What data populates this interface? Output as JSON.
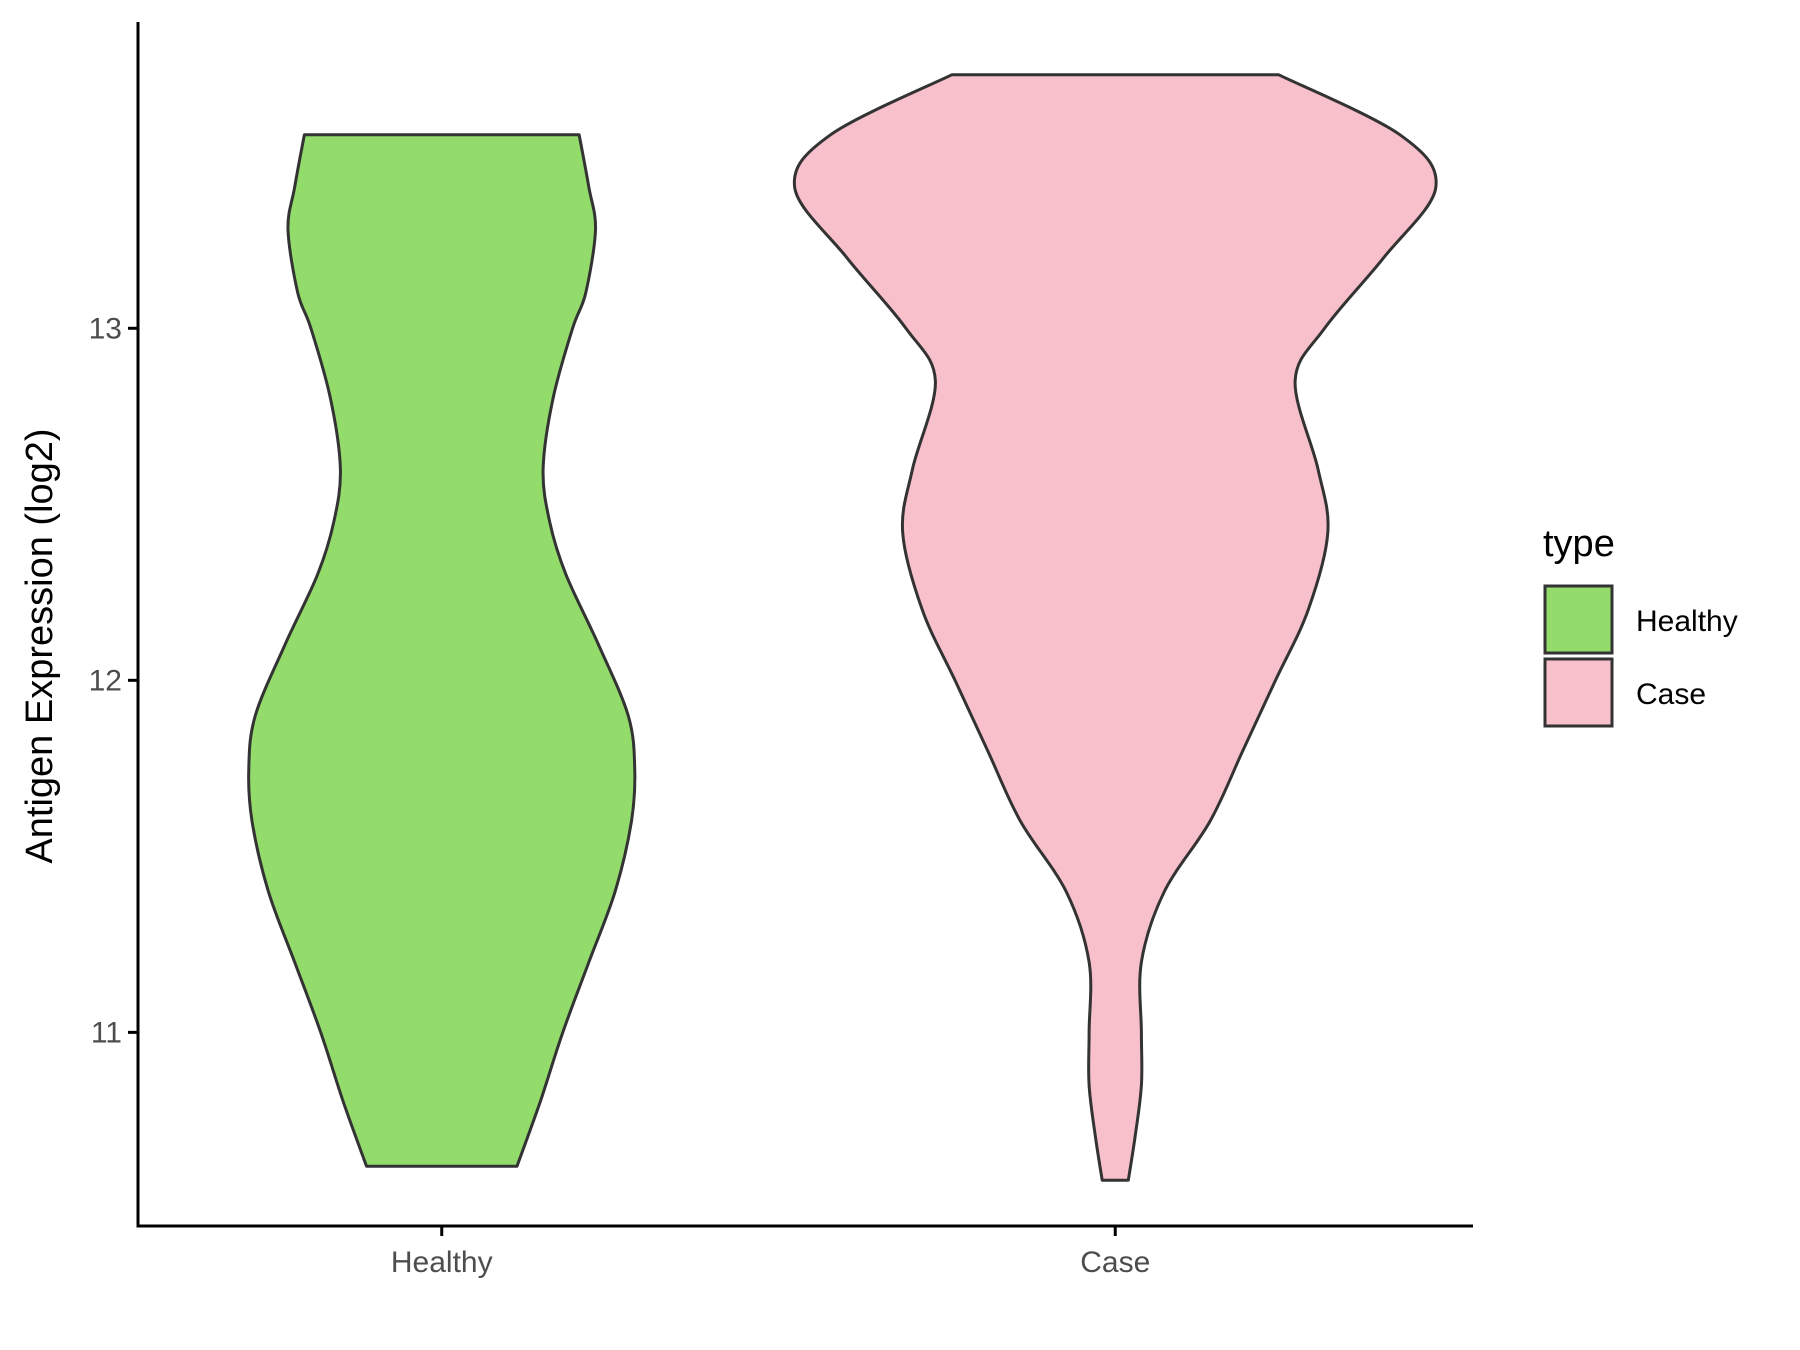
{
  "chart_data": {
    "type": "violin",
    "title": "",
    "xlabel": "",
    "ylabel": "Antigen Expression (log2)",
    "ylim": [
      10.45,
      13.87
    ],
    "yticks": [
      11,
      12,
      13
    ],
    "categories": [
      "Healthy",
      "Case"
    ],
    "grid": false,
    "legend": {
      "title": "type",
      "position": "right",
      "entries": [
        {
          "label": "Healthy",
          "color": "#93dc6b"
        },
        {
          "label": "Case",
          "color": "#f8c0cb"
        }
      ]
    },
    "series": [
      {
        "category": "Healthy",
        "color": "#93dc6b",
        "min": 10.62,
        "max": 13.55,
        "profile": [
          [
            10.62,
            0.23
          ],
          [
            10.8,
            0.3
          ],
          [
            11.0,
            0.37
          ],
          [
            11.2,
            0.45
          ],
          [
            11.4,
            0.53
          ],
          [
            11.6,
            0.58
          ],
          [
            11.75,
            0.59
          ],
          [
            11.9,
            0.57
          ],
          [
            12.1,
            0.48
          ],
          [
            12.3,
            0.38
          ],
          [
            12.45,
            0.33
          ],
          [
            12.6,
            0.31
          ],
          [
            12.8,
            0.34
          ],
          [
            13.0,
            0.4
          ],
          [
            13.1,
            0.44
          ],
          [
            13.28,
            0.47
          ],
          [
            13.4,
            0.45
          ],
          [
            13.55,
            0.42
          ]
        ]
      },
      {
        "category": "Case",
        "color": "#f8c0cb",
        "min": 10.58,
        "max": 13.72,
        "profile": [
          [
            10.58,
            0.04
          ],
          [
            10.7,
            0.06
          ],
          [
            10.85,
            0.08
          ],
          [
            11.0,
            0.08
          ],
          [
            11.2,
            0.08
          ],
          [
            11.4,
            0.15
          ],
          [
            11.6,
            0.29
          ],
          [
            11.8,
            0.39
          ],
          [
            12.0,
            0.49
          ],
          [
            12.2,
            0.59
          ],
          [
            12.42,
            0.65
          ],
          [
            12.6,
            0.62
          ],
          [
            12.85,
            0.55
          ],
          [
            13.0,
            0.64
          ],
          [
            13.2,
            0.82
          ],
          [
            13.4,
            0.98
          ],
          [
            13.55,
            0.87
          ],
          [
            13.72,
            0.5
          ]
        ]
      }
    ]
  }
}
